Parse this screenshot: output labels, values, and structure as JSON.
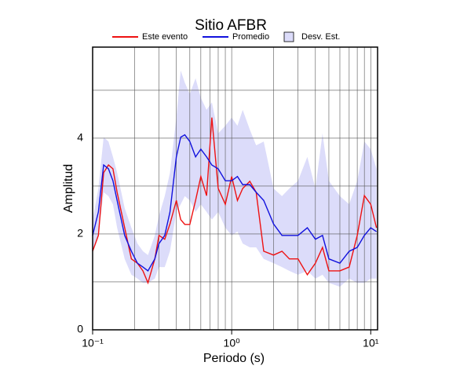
{
  "chart_data": {
    "type": "line",
    "title": "Sitio AFBR",
    "x_label": "Periodo (s)",
    "y_label": "Amplitud",
    "log_x": true,
    "grid": true,
    "xlim": [
      0.1,
      11.2
    ],
    "ylim": [
      0,
      5.9
    ],
    "xticks": [
      {
        "value": 0.1,
        "label": "10⁻¹"
      },
      {
        "value": 1,
        "label": "10⁰"
      },
      {
        "value": 10,
        "label": "10¹"
      }
    ],
    "x_minor_ticks": [
      0.2,
      0.3,
      0.4,
      0.5,
      0.6,
      0.7,
      0.8,
      0.9,
      1,
      2,
      3,
      4,
      5,
      6,
      7,
      8,
      9,
      10
    ],
    "yticks": [
      0,
      2,
      4
    ],
    "y_minor_ticks": [
      1,
      3,
      5
    ],
    "x": [
      0.1,
      0.11,
      0.12,
      0.13,
      0.14,
      0.15,
      0.17,
      0.19,
      0.21,
      0.23,
      0.25,
      0.28,
      0.3,
      0.33,
      0.36,
      0.4,
      0.43,
      0.46,
      0.5,
      0.55,
      0.6,
      0.66,
      0.72,
      0.8,
      0.9,
      1.0,
      1.1,
      1.2,
      1.35,
      1.5,
      1.7,
      2.0,
      2.3,
      2.6,
      3.0,
      3.5,
      4.0,
      4.5,
      5.0,
      6.0,
      7.0,
      8.0,
      9.0,
      10,
      11
    ],
    "band": {
      "name": "Desv. Est.",
      "color": "#dcdcfa",
      "upper": [
        2.3,
        2.95,
        4.02,
        3.93,
        3.61,
        3.28,
        2.54,
        2.13,
        1.8,
        1.64,
        1.56,
        1.97,
        2.38,
        2.79,
        3.28,
        4.43,
        5.41,
        5.16,
        4.92,
        5.25,
        4.84,
        4.59,
        4.75,
        4.1,
        4.26,
        4.43,
        4.26,
        4.59,
        4.18,
        3.85,
        3.93,
        2.95,
        2.79,
        2.95,
        3.11,
        3.61,
        2.95,
        4.1,
        3.11,
        2.79,
        2.62,
        3.11,
        3.93,
        3.77,
        3.36
      ],
      "lower": [
        1.64,
        1.97,
        2.87,
        2.79,
        2.62,
        2.13,
        1.48,
        1.15,
        1.07,
        0.98,
        0.98,
        1.07,
        1.31,
        1.31,
        1.64,
        2.46,
        2.62,
        2.79,
        2.7,
        2.46,
        2.62,
        2.46,
        2.3,
        2.46,
        2.13,
        1.97,
        2.05,
        1.8,
        1.72,
        1.72,
        1.48,
        1.39,
        1.31,
        1.23,
        1.15,
        1.23,
        1.07,
        1.15,
        0.98,
        0.9,
        1.07,
        0.98,
        0.98,
        1.07,
        1.07
      ]
    },
    "series": [
      {
        "name": "Este evento",
        "color": "#ee1111",
        "values": [
          1.64,
          1.97,
          3.28,
          3.44,
          3.36,
          2.87,
          2.13,
          1.48,
          1.39,
          1.23,
          0.98,
          1.48,
          1.97,
          1.89,
          2.21,
          2.7,
          2.3,
          2.2,
          2.2,
          2.7,
          3.2,
          2.8,
          4.43,
          2.95,
          2.62,
          3.2,
          2.7,
          2.95,
          3.1,
          2.87,
          1.64,
          1.56,
          1.64,
          1.48,
          1.48,
          1.15,
          1.39,
          1.72,
          1.23,
          1.23,
          1.31,
          1.97,
          2.8,
          2.62,
          2.13
        ]
      },
      {
        "name": "Promedio",
        "color": "#1111dd",
        "values": [
          1.97,
          2.46,
          3.44,
          3.36,
          3.11,
          2.7,
          1.97,
          1.64,
          1.39,
          1.31,
          1.23,
          1.48,
          1.8,
          1.97,
          2.46,
          3.61,
          4.02,
          4.07,
          3.93,
          3.61,
          3.77,
          3.61,
          3.44,
          3.36,
          3.11,
          3.11,
          3.2,
          3.03,
          3.03,
          2.87,
          2.7,
          2.21,
          1.97,
          1.97,
          1.97,
          2.13,
          1.89,
          1.97,
          1.48,
          1.39,
          1.64,
          1.72,
          1.97,
          2.13,
          2.05
        ]
      }
    ]
  }
}
